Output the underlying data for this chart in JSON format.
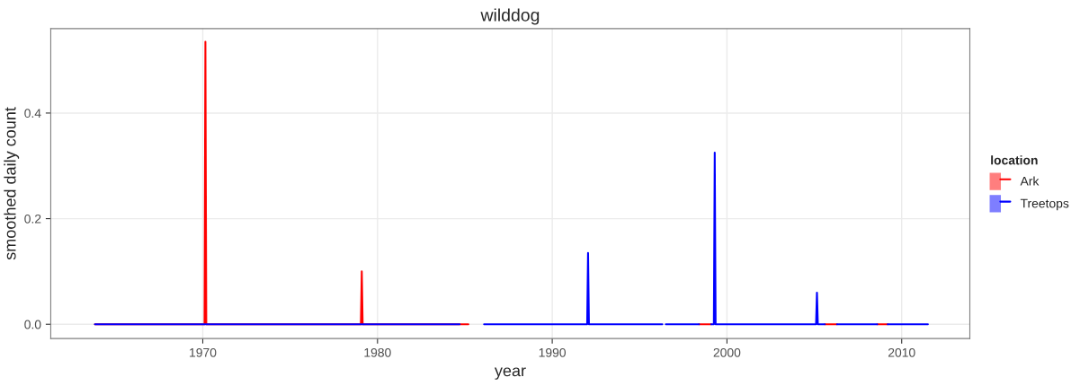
{
  "chart_data": {
    "type": "line",
    "title": "wilddog",
    "xlabel": "year",
    "ylabel": "smoothed daily count",
    "legend_title": "location",
    "legend": "right",
    "grid": true,
    "xlim": [
      1961.3,
      2013.9
    ],
    "xticks": [
      1970,
      1980,
      1990,
      2000,
      2010
    ],
    "ylim": [
      -0.027,
      0.56
    ],
    "yticks": [
      {
        "value": 0,
        "label": "0.0"
      },
      {
        "value": 0.2,
        "label": "0.2"
      },
      {
        "value": 0.4,
        "label": "0.4"
      }
    ],
    "series": [
      {
        "name": "Ark",
        "color": "#ff0000",
        "x": [
          1963.83,
          1970.1,
          1970.15,
          1970.2,
          1979.05,
          1979.1,
          1979.15,
          1985.2,
          1985.6,
          1998.4,
          1999.1,
          1999.2,
          2005.6,
          2006.3,
          2006.4,
          2008.6,
          2009.2
        ],
        "values": [
          0,
          0,
          0.535,
          0,
          0,
          0.1,
          0,
          0,
          null,
          0,
          0,
          null,
          0,
          0,
          null,
          0,
          0
        ]
      },
      {
        "name": "Treetops",
        "color": "#0000ff",
        "x": [
          1963.83,
          1984.7,
          1985.4,
          1986.1,
          1992.0,
          1992.05,
          1992.1,
          1996.3,
          1996.4,
          1996.5,
          1998.4,
          1998.7,
          1999.1,
          1999.25,
          1999.3,
          1999.35,
          2005.1,
          2005.15,
          2005.2,
          2005.6,
          2005.9,
          2006.3,
          2008.6,
          2008.9,
          2009.2,
          2011.5
        ],
        "values": [
          0,
          0,
          null,
          0,
          0,
          0.135,
          0,
          0,
          null,
          0,
          0,
          null,
          0,
          0,
          0.325,
          0,
          0,
          0.06,
          0,
          0,
          null,
          0,
          0,
          null,
          0,
          0
        ]
      }
    ]
  }
}
